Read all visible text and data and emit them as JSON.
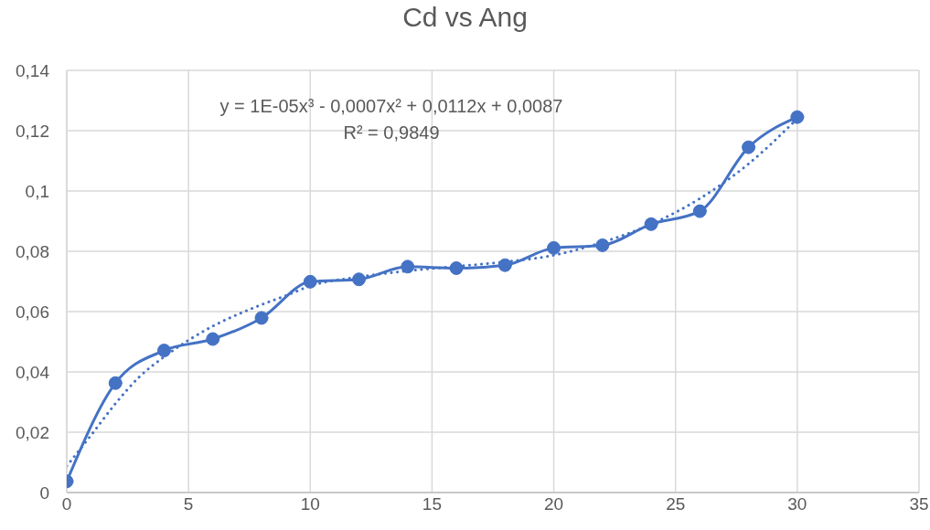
{
  "chart_data": {
    "type": "line",
    "title": "Cd vs Ang",
    "x": [
      0,
      2,
      4,
      6,
      8,
      10,
      12,
      14,
      16,
      18,
      20,
      22,
      24,
      26,
      28,
      30
    ],
    "series": [
      {
        "color": "#4472c4",
        "values": [
          0.0037,
          0.0363,
          0.0471,
          0.0509,
          0.0579,
          0.0699,
          0.0707,
          0.0749,
          0.0744,
          0.0754,
          0.0811,
          0.082,
          0.089,
          0.0933,
          0.1145,
          0.1245
        ]
      },
      {
        "type": "line",
        "x": [
          0,
          1,
          2,
          3,
          4,
          5,
          6,
          7,
          8,
          9,
          10,
          12,
          14,
          16,
          18,
          20,
          22,
          24,
          26,
          28,
          30
        ],
        "values": [
          0.0088,
          0.019,
          0.0295,
          0.0385,
          0.045,
          0.0505,
          0.0552,
          0.059,
          0.0623,
          0.0653,
          0.0685,
          0.0715,
          0.0735,
          0.075,
          0.0765,
          0.0787,
          0.083,
          0.089,
          0.0975,
          0.109,
          0.124
        ],
        "color": "#4472c4",
        "line_style": "dotted",
        "marker": "none"
      }
    ],
    "xlim": [
      0,
      35
    ],
    "xticks": [
      0,
      5,
      10,
      15,
      20,
      25,
      30,
      35
    ],
    "ylim": [
      0,
      0.14
    ],
    "yticks": [
      0,
      {
        "value": 0.02,
        "label": "0,02"
      },
      {
        "value": 0.04,
        "label": "0,04"
      },
      {
        "value": 0.06,
        "label": "0,06"
      },
      {
        "value": 0.08,
        "label": "0,08"
      },
      {
        "value": 0.1,
        "label": "0,1"
      },
      {
        "value": 0.12,
        "label": "0,12"
      },
      {
        "value": 0.14,
        "label": "0,14"
      }
    ],
    "grid": true,
    "marker": "circle",
    "line_style": "solid",
    "annotations": [
      "y = 1E-05x³ - 0,0007x² + 0,0112x + 0,0087",
      "R² = 0,9849"
    ]
  }
}
